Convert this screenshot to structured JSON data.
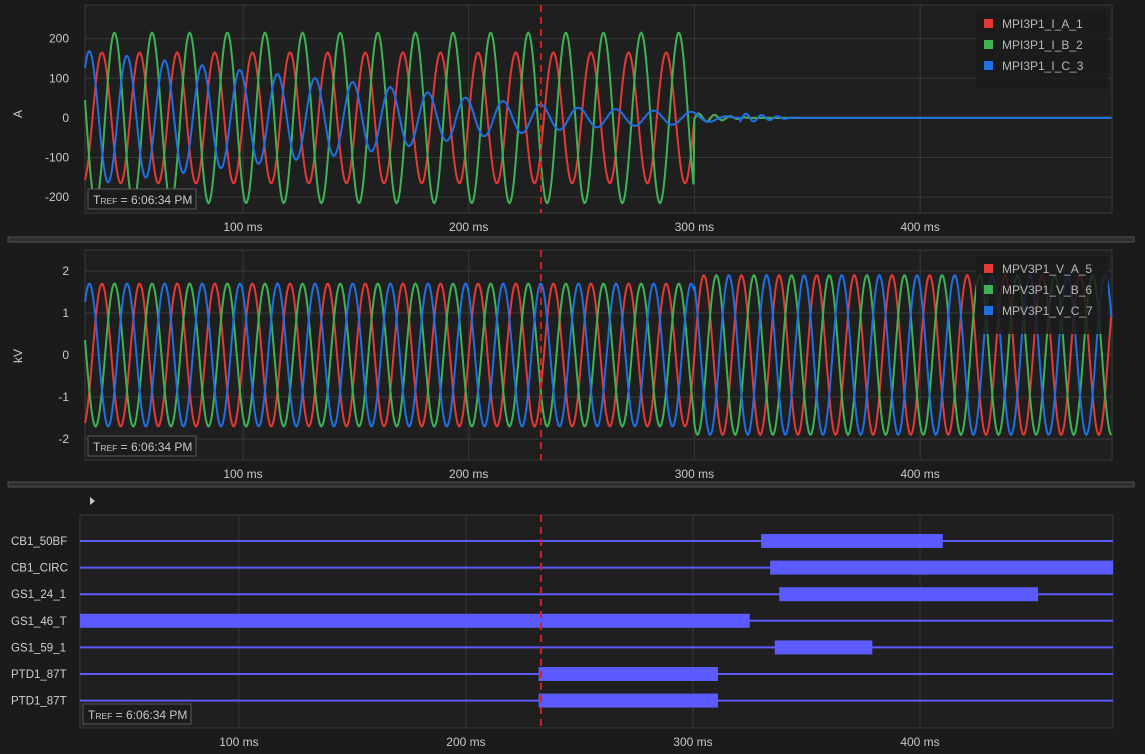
{
  "colors": {
    "phase_a": "#e53935",
    "phase_b": "#3cb454",
    "phase_c": "#1f6fe5",
    "digital": "#5b5bff",
    "cursor": "#d62020"
  },
  "tref_label": "TREF = 6:06:34 PM",
  "tref": {
    "main": "T",
    "sub": "REF",
    "value": " = 6:06:34 PM"
  },
  "cursor_ms": 232,
  "expand_icon": "triangle-right-icon",
  "chart_data": [
    {
      "type": "line",
      "ylabel": "A",
      "x_unit": "ms",
      "xlim": [
        30,
        485
      ],
      "ylim": [
        -240,
        285
      ],
      "y_ticks": [
        200,
        100,
        0,
        -100,
        -200
      ],
      "x_ticks": [
        "100 ms",
        "200 ms",
        "300 ms",
        "400 ms"
      ],
      "x_tick_values": [
        100,
        200,
        300,
        400
      ],
      "legend_position": "top-right",
      "series": [
        {
          "name": "MPI3P1_I_A_1",
          "amplitude": 165,
          "freq_hz": 60,
          "phase_deg": 0,
          "until_ms": 300
        },
        {
          "name": "MPI3P1_I_B_2",
          "amplitude": 215,
          "freq_hz": 60,
          "phase_deg": -120,
          "until_ms": 300
        },
        {
          "name": "MPI3P1_I_C_3",
          "amplitude_points": [
            [
              30,
              170
            ],
            [
              100,
              120
            ],
            [
              150,
              90
            ],
            [
              200,
              50
            ],
            [
              250,
              25
            ],
            [
              300,
              15
            ],
            [
              320,
              0
            ]
          ],
          "freq_hz": 60,
          "phase_deg": 120,
          "until_ms": 320
        }
      ]
    },
    {
      "type": "line",
      "ylabel": "kV",
      "x_unit": "ms",
      "xlim": [
        30,
        485
      ],
      "ylim": [
        -2.5,
        2.5
      ],
      "y_ticks": [
        2,
        1,
        0,
        -1,
        -2
      ],
      "x_ticks": [
        "100 ms",
        "200 ms",
        "300 ms",
        "400 ms"
      ],
      "x_tick_values": [
        100,
        200,
        300,
        400
      ],
      "legend_position": "top-right",
      "series": [
        {
          "name": "MPV3P1_V_A_5",
          "amplitude_before": 1.7,
          "amplitude_after": 1.9,
          "change_ms": 300,
          "freq_hz": 60,
          "phase_deg": 0
        },
        {
          "name": "MPV3P1_V_B_6",
          "amplitude_before": 1.7,
          "amplitude_after": 1.9,
          "change_ms": 300,
          "freq_hz": 60,
          "phase_deg": -120
        },
        {
          "name": "MPV3P1_V_C_7",
          "amplitude_before": 1.7,
          "amplitude_after": 1.9,
          "change_ms": 300,
          "freq_hz": 60,
          "phase_deg": 120
        }
      ]
    },
    {
      "type": "digital",
      "x_unit": "ms",
      "xlim": [
        30,
        485
      ],
      "x_ticks": [
        "100 ms",
        "200 ms",
        "300 ms",
        "400 ms"
      ],
      "x_tick_values": [
        100,
        200,
        300,
        400
      ],
      "channels": [
        {
          "label": "CB1_50BF",
          "active": [
            [
              330,
              410
            ]
          ]
        },
        {
          "label": "CB1_CIRC",
          "active": [
            [
              334,
              485
            ]
          ]
        },
        {
          "label": "GS1_24_1",
          "active": [
            [
              338,
              452
            ]
          ]
        },
        {
          "label": "GS1_46_T",
          "active": [
            [
              30,
              325
            ]
          ]
        },
        {
          "label": "GS1_59_1",
          "active": [
            [
              336,
              379
            ]
          ]
        },
        {
          "label": "PTD1_87T",
          "active": [
            [
              232,
              311
            ]
          ]
        },
        {
          "label": "PTD1_87T",
          "active": [
            [
              232,
              311
            ]
          ]
        }
      ]
    }
  ]
}
